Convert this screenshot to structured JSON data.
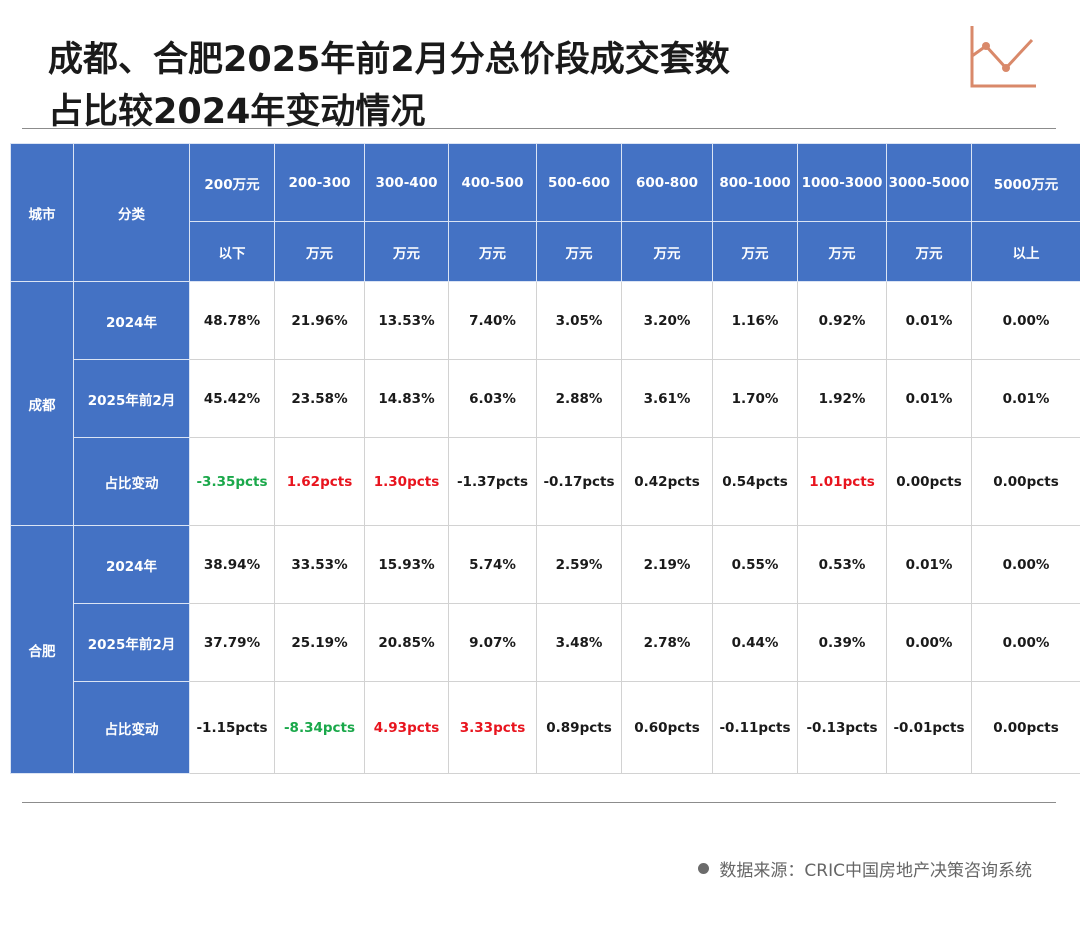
{
  "title": {
    "line1": "成都、合肥2025年前2月分总价段成交套数",
    "line2": "占比较2024年变动情况"
  },
  "icons": {
    "logo": "line-chart-icon",
    "source_bullet": "dot-icon"
  },
  "colors": {
    "header_bg": "#4472c4",
    "decrease": "#1aa84a",
    "increase": "#e8141e"
  },
  "table": {
    "header": {
      "city": "城市",
      "category": "分类",
      "columns": [
        {
          "top": "200万元",
          "bottom": "以下"
        },
        {
          "top": "200-300",
          "bottom": "万元"
        },
        {
          "top": "300-400",
          "bottom": "万元"
        },
        {
          "top": "400-500",
          "bottom": "万元"
        },
        {
          "top": "500-600",
          "bottom": "万元"
        },
        {
          "top": "600-800",
          "bottom": "万元"
        },
        {
          "top": "800-1000",
          "bottom": "万元"
        },
        {
          "top": "1000-3000",
          "bottom": "万元"
        },
        {
          "top": "3000-5000",
          "bottom": "万元"
        },
        {
          "top": "5000万元",
          "bottom": "以上"
        }
      ]
    },
    "groups": [
      {
        "city": "成都",
        "rows": [
          {
            "label": "2024年",
            "cells": [
              {
                "v": "48.78%",
                "c": ""
              },
              {
                "v": "21.96%",
                "c": ""
              },
              {
                "v": "13.53%",
                "c": ""
              },
              {
                "v": "7.40%",
                "c": ""
              },
              {
                "v": "3.05%",
                "c": ""
              },
              {
                "v": "3.20%",
                "c": ""
              },
              {
                "v": "1.16%",
                "c": ""
              },
              {
                "v": "0.92%",
                "c": ""
              },
              {
                "v": "0.01%",
                "c": ""
              },
              {
                "v": "0.00%",
                "c": ""
              }
            ]
          },
          {
            "label": "2025年前2月",
            "cells": [
              {
                "v": "45.42%",
                "c": ""
              },
              {
                "v": "23.58%",
                "c": ""
              },
              {
                "v": "14.83%",
                "c": ""
              },
              {
                "v": "6.03%",
                "c": ""
              },
              {
                "v": "2.88%",
                "c": ""
              },
              {
                "v": "3.61%",
                "c": ""
              },
              {
                "v": "1.70%",
                "c": ""
              },
              {
                "v": "1.92%",
                "c": ""
              },
              {
                "v": "0.01%",
                "c": ""
              },
              {
                "v": "0.01%",
                "c": ""
              }
            ]
          },
          {
            "label": "占比变动",
            "cells": [
              {
                "v": "-3.35pcts",
                "c": "green"
              },
              {
                "v": "1.62pcts",
                "c": "red"
              },
              {
                "v": "1.30pcts",
                "c": "red"
              },
              {
                "v": "-1.37pcts",
                "c": ""
              },
              {
                "v": "-0.17pcts",
                "c": ""
              },
              {
                "v": "0.42pcts",
                "c": ""
              },
              {
                "v": "0.54pcts",
                "c": ""
              },
              {
                "v": "1.01pcts",
                "c": "red"
              },
              {
                "v": "0.00pcts",
                "c": ""
              },
              {
                "v": "0.00pcts",
                "c": ""
              }
            ]
          }
        ]
      },
      {
        "city": "合肥",
        "rows": [
          {
            "label": "2024年",
            "cells": [
              {
                "v": "38.94%",
                "c": ""
              },
              {
                "v": "33.53%",
                "c": ""
              },
              {
                "v": "15.93%",
                "c": ""
              },
              {
                "v": "5.74%",
                "c": ""
              },
              {
                "v": "2.59%",
                "c": ""
              },
              {
                "v": "2.19%",
                "c": ""
              },
              {
                "v": "0.55%",
                "c": ""
              },
              {
                "v": "0.53%",
                "c": ""
              },
              {
                "v": "0.01%",
                "c": ""
              },
              {
                "v": "0.00%",
                "c": ""
              }
            ]
          },
          {
            "label": "2025年前2月",
            "cells": [
              {
                "v": "37.79%",
                "c": ""
              },
              {
                "v": "25.19%",
                "c": ""
              },
              {
                "v": "20.85%",
                "c": ""
              },
              {
                "v": "9.07%",
                "c": ""
              },
              {
                "v": "3.48%",
                "c": ""
              },
              {
                "v": "2.78%",
                "c": ""
              },
              {
                "v": "0.44%",
                "c": ""
              },
              {
                "v": "0.39%",
                "c": ""
              },
              {
                "v": "0.00%",
                "c": ""
              },
              {
                "v": "0.00%",
                "c": ""
              }
            ]
          },
          {
            "label": "占比变动",
            "cells": [
              {
                "v": "-1.15pcts",
                "c": ""
              },
              {
                "v": "-8.34pcts",
                "c": "green"
              },
              {
                "v": "4.93pcts",
                "c": "red"
              },
              {
                "v": "3.33pcts",
                "c": "red"
              },
              {
                "v": "0.89pcts",
                "c": ""
              },
              {
                "v": "0.60pcts",
                "c": ""
              },
              {
                "v": "-0.11pcts",
                "c": ""
              },
              {
                "v": "-0.13pcts",
                "c": ""
              },
              {
                "v": "-0.01pcts",
                "c": ""
              },
              {
                "v": "0.00pcts",
                "c": ""
              }
            ]
          }
        ]
      }
    ]
  },
  "source": "数据来源：CRIC中国房地产决策咨询系统"
}
